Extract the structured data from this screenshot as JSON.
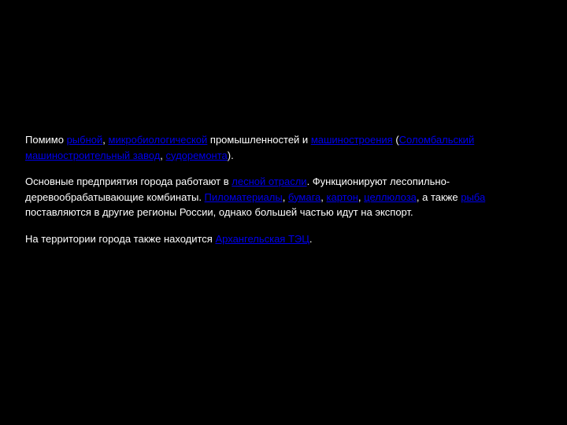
{
  "paragraphs": [
    {
      "segments": [
        {
          "type": "text",
          "name": "text-segment",
          "t": "Помимо "
        },
        {
          "type": "link",
          "name": "link-rybnoi",
          "t": "рыбной"
        },
        {
          "type": "text",
          "name": "text-segment",
          "t": ", "
        },
        {
          "type": "link",
          "name": "link-microbiological",
          "t": "микробиологической"
        },
        {
          "type": "text",
          "name": "text-segment",
          "t": " промышленностей и "
        },
        {
          "type": "link",
          "name": "link-mechanical",
          "t": "машиностроения"
        },
        {
          "type": "text",
          "name": "text-segment",
          "t": " ("
        },
        {
          "type": "link",
          "name": "link-solombalskiy",
          "t": "Соломбальский машиностроительный завод"
        },
        {
          "type": "text",
          "name": "text-segment",
          "t": ", "
        },
        {
          "type": "link",
          "name": "link-shiprepair",
          "t": "судоремонта"
        },
        {
          "type": "text",
          "name": "text-segment",
          "t": ")."
        }
      ]
    },
    {
      "segments": [
        {
          "type": "text",
          "name": "text-segment",
          "t": "Основные предприятия города работают в "
        },
        {
          "type": "link",
          "name": "link-forest",
          "t": "лесной отрасли"
        },
        {
          "type": "text",
          "name": "text-segment",
          "t": ". Функционируют лесопильно-деревообрабатывающие комбинаты. "
        },
        {
          "type": "link",
          "name": "link-lumber",
          "t": "Пиломатериалы"
        },
        {
          "type": "text",
          "name": "text-segment",
          "t": ", "
        },
        {
          "type": "link",
          "name": "link-paper",
          "t": "бумага"
        },
        {
          "type": "text",
          "name": "text-segment",
          "t": ", "
        },
        {
          "type": "link",
          "name": "link-cardboard",
          "t": "картон"
        },
        {
          "type": "text",
          "name": "text-segment",
          "t": ", "
        },
        {
          "type": "link",
          "name": "link-cellulose",
          "t": "целлюлоза"
        },
        {
          "type": "text",
          "name": "text-segment",
          "t": ", а также "
        },
        {
          "type": "link",
          "name": "link-fish",
          "t": "рыба"
        },
        {
          "type": "text",
          "name": "text-segment",
          "t": " поставляются в другие регионы России, однако большей частью идут на экспорт."
        }
      ]
    },
    {
      "segments": [
        {
          "type": "text",
          "name": "text-segment",
          "t": "На территории города также находится "
        },
        {
          "type": "link",
          "name": "link-tets",
          "t": "Архангельская ТЭЦ"
        },
        {
          "type": "text",
          "name": "text-segment",
          "t": "."
        }
      ]
    }
  ]
}
